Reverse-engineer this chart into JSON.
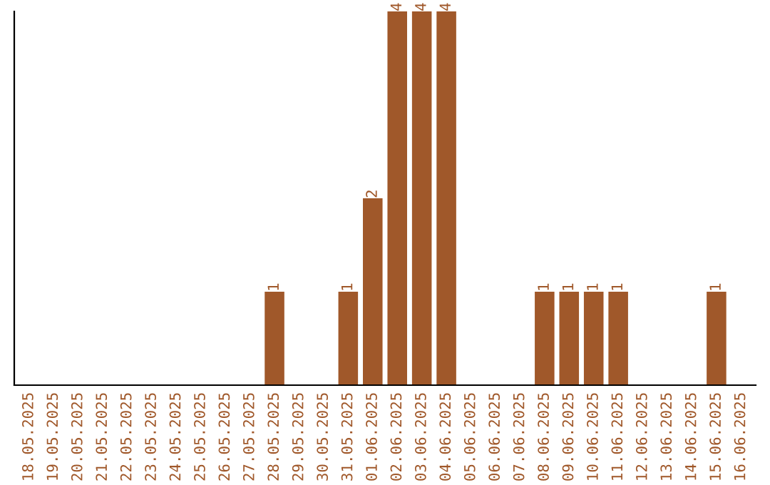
{
  "chart_data": {
    "type": "bar",
    "categories": [
      "18.05.2025",
      "19.05.2025",
      "20.05.2025",
      "21.05.2025",
      "22.05.2025",
      "23.05.2025",
      "24.05.2025",
      "25.05.2025",
      "26.05.2025",
      "27.05.2025",
      "28.05.2025",
      "29.05.2025",
      "30.05.2025",
      "31.05.2025",
      "01.06.2025",
      "02.06.2025",
      "03.06.2025",
      "04.06.2025",
      "05.06.2025",
      "06.06.2025",
      "07.06.2025",
      "08.06.2025",
      "09.06.2025",
      "10.06.2025",
      "11.06.2025",
      "12.06.2025",
      "13.06.2025",
      "14.06.2025",
      "15.06.2025",
      "16.06.2025"
    ],
    "values": [
      0,
      0,
      0,
      0,
      0,
      0,
      0,
      0,
      0,
      0,
      1,
      0,
      0,
      1,
      2,
      4,
      4,
      4,
      0,
      0,
      0,
      1,
      1,
      1,
      1,
      0,
      0,
      0,
      1,
      0
    ],
    "value_labels": [
      null,
      null,
      null,
      null,
      null,
      null,
      null,
      null,
      null,
      null,
      "1",
      null,
      null,
      "1",
      "2",
      "4",
      "4",
      "4",
      null,
      null,
      null,
      "1",
      "1",
      "1",
      "1",
      null,
      null,
      null,
      "1",
      null
    ],
    "color": "#a0582a",
    "tick_labels": "x",
    "grid": false,
    "legend": false
  }
}
